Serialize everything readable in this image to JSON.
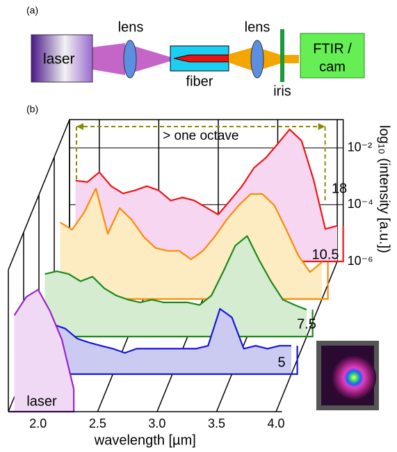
{
  "diagram": {
    "panel_label": "(a)",
    "source": "laser",
    "lens_1": "lens",
    "fiber": "fiber",
    "lens_2": "lens",
    "iris": "iris",
    "detector": [
      "FTIR /",
      "cam"
    ]
  },
  "chart_data": {
    "type": "waterfall",
    "panel_label": "(b)",
    "x_label": "wavelength [µm]",
    "y_label": "log₁₀ (intensity [a.u.])",
    "annotation": "> one octave",
    "log_y": true,
    "xlim": [
      1.75,
      4.05
    ],
    "ylim": [
      1e-06,
      0.1
    ],
    "xticks": [
      {
        "value": 2,
        "label": "2.0"
      },
      {
        "value": 2.5,
        "label": "2.5"
      },
      {
        "value": 3,
        "label": "3.0"
      },
      {
        "value": 3.5,
        "label": "3.5"
      },
      {
        "value": 4,
        "label": "4.0"
      }
    ],
    "yticks": [
      {
        "value": 1e-06,
        "label": "10⁻⁶"
      },
      {
        "value": 0.0001,
        "label": "10⁻⁴"
      },
      {
        "value": 0.01,
        "label": "10⁻²"
      }
    ],
    "x": [
      1.8,
      1.9,
      2.0,
      2.1,
      2.2,
      2.3,
      2.4,
      2.5,
      2.6,
      2.7,
      2.8,
      2.9,
      3.0,
      3.1,
      3.2,
      3.3,
      3.4,
      3.5,
      3.6,
      3.7,
      3.8,
      3.9,
      4.0
    ],
    "series": [
      {
        "name": "laser",
        "color": "#9b22c8",
        "fill_color": "#efd9f5",
        "values": [
          0.0025,
          0.011,
          0.02,
          0.0035,
          0.00035,
          6.3e-06,
          null,
          null,
          null,
          null,
          null,
          null,
          null,
          null,
          null,
          null,
          null,
          null,
          null,
          null,
          null,
          null,
          null
        ]
      },
      {
        "name": "5",
        "color": "#1414e0",
        "fill_color": "#cbcbf2",
        "values": [
          0.0004,
          0.00032,
          5.6e-05,
          4e-05,
          1.8e-05,
          1.3e-05,
          1e-05,
          7.9e-06,
          5.6e-06,
          7.9e-06,
          7.9e-06,
          7.9e-06,
          7.9e-06,
          7.9e-06,
          7.9e-06,
          1e-05,
          0.0002,
          0.0001,
          7.9e-06,
          1e-05,
          7.9e-06,
          1e-05,
          1e-05
        ]
      },
      {
        "name": "7.5",
        "color": "#1a8a1a",
        "fill_color": "#d5ecd0",
        "values": [
          0.00016,
          0.0002,
          0.00016,
          8.9e-05,
          0.00013,
          5e-05,
          2.8e-05,
          2e-05,
          1.6e-05,
          2e-05,
          1.6e-05,
          1.6e-05,
          1.6e-05,
          1.3e-05,
          2.8e-05,
          0.0002,
          0.0016,
          0.0035,
          0.0005,
          8.9e-05,
          2e-05,
          1.3e-05,
          8.9e-06
        ]
      },
      {
        "name": "10.5",
        "color": "#ff8a00",
        "fill_color": "#fdebc2",
        "values": [
          0.0005,
          0.00028,
          0.0011,
          0.0079,
          0.0002,
          0.0016,
          0.00063,
          0.00016,
          6.3e-05,
          5e-05,
          5e-05,
          2.5e-05,
          5e-05,
          0.00016,
          0.00063,
          0.002,
          0.005,
          0.005,
          0.002,
          0.00028,
          3.5e-05,
          8.9e-06,
          2e-05
        ]
      },
      {
        "name": "18",
        "color": "#f01414",
        "fill_color": "#f7d6f2",
        "values": [
          0.00071,
          0.00063,
          0.0014,
          0.00045,
          0.00025,
          0.00032,
          0.00045,
          0.00032,
          0.00014,
          0.00018,
          0.00014,
          7.9e-05,
          4.5e-05,
          0.00014,
          0.00045,
          0.002,
          0.0045,
          0.014,
          0.045,
          0.018,
          0.00079,
          1.4e-05,
          1.8e-05
        ]
      }
    ]
  }
}
